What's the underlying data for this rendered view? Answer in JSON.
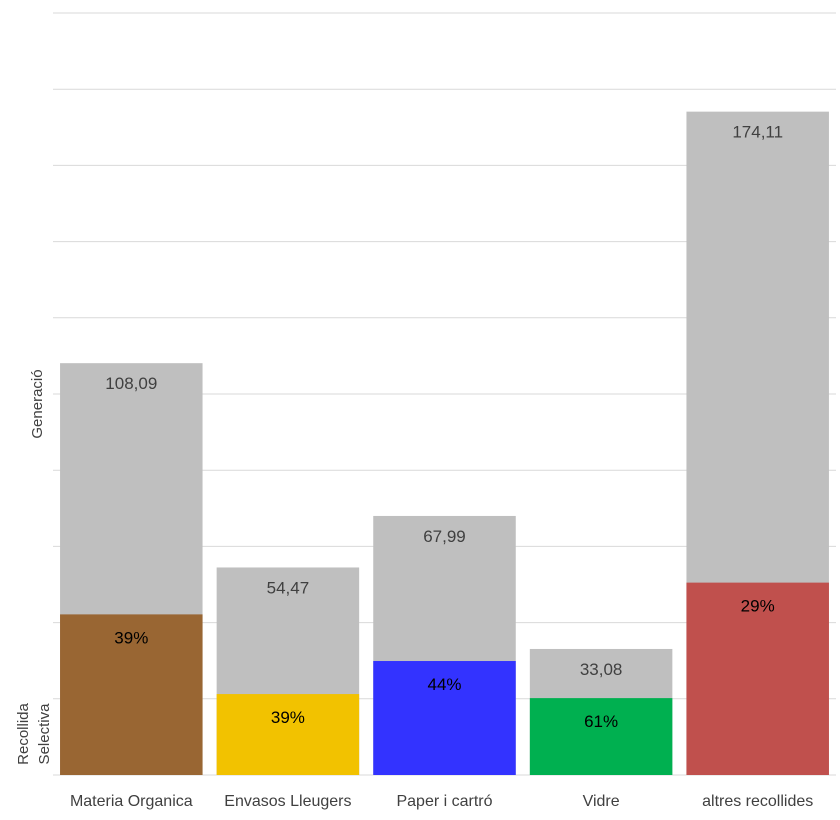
{
  "chart_data": {
    "type": "bar",
    "stacked": true,
    "categories": [
      "Materia Organica",
      "Envasos Lleugers",
      "Paper i cartró",
      "Vidre",
      "altres recollides"
    ],
    "generacio_totals": [
      108.09,
      54.47,
      67.99,
      33.08,
      174.11
    ],
    "total_labels": [
      "108,09",
      "54,47",
      "67,99",
      "33,08",
      "174,11"
    ],
    "recollida_selectiva_share": [
      0.39,
      0.39,
      0.44,
      0.61,
      0.29
    ],
    "pct_labels": [
      "39%",
      "39%",
      "44%",
      "61%",
      "29%"
    ],
    "ylabel_top": "Generació",
    "ylabel_bottom_line1": "Recollida",
    "ylabel_bottom_line2": "Selectiva",
    "ylim": [
      0,
      200
    ],
    "grid": true,
    "colors": {
      "generacio": "#bfbfbf",
      "selectiva": [
        "#996633",
        "#f2c200",
        "#3333ff",
        "#00b050",
        "#c0504d"
      ],
      "grid": "#d9d9d9"
    }
  }
}
